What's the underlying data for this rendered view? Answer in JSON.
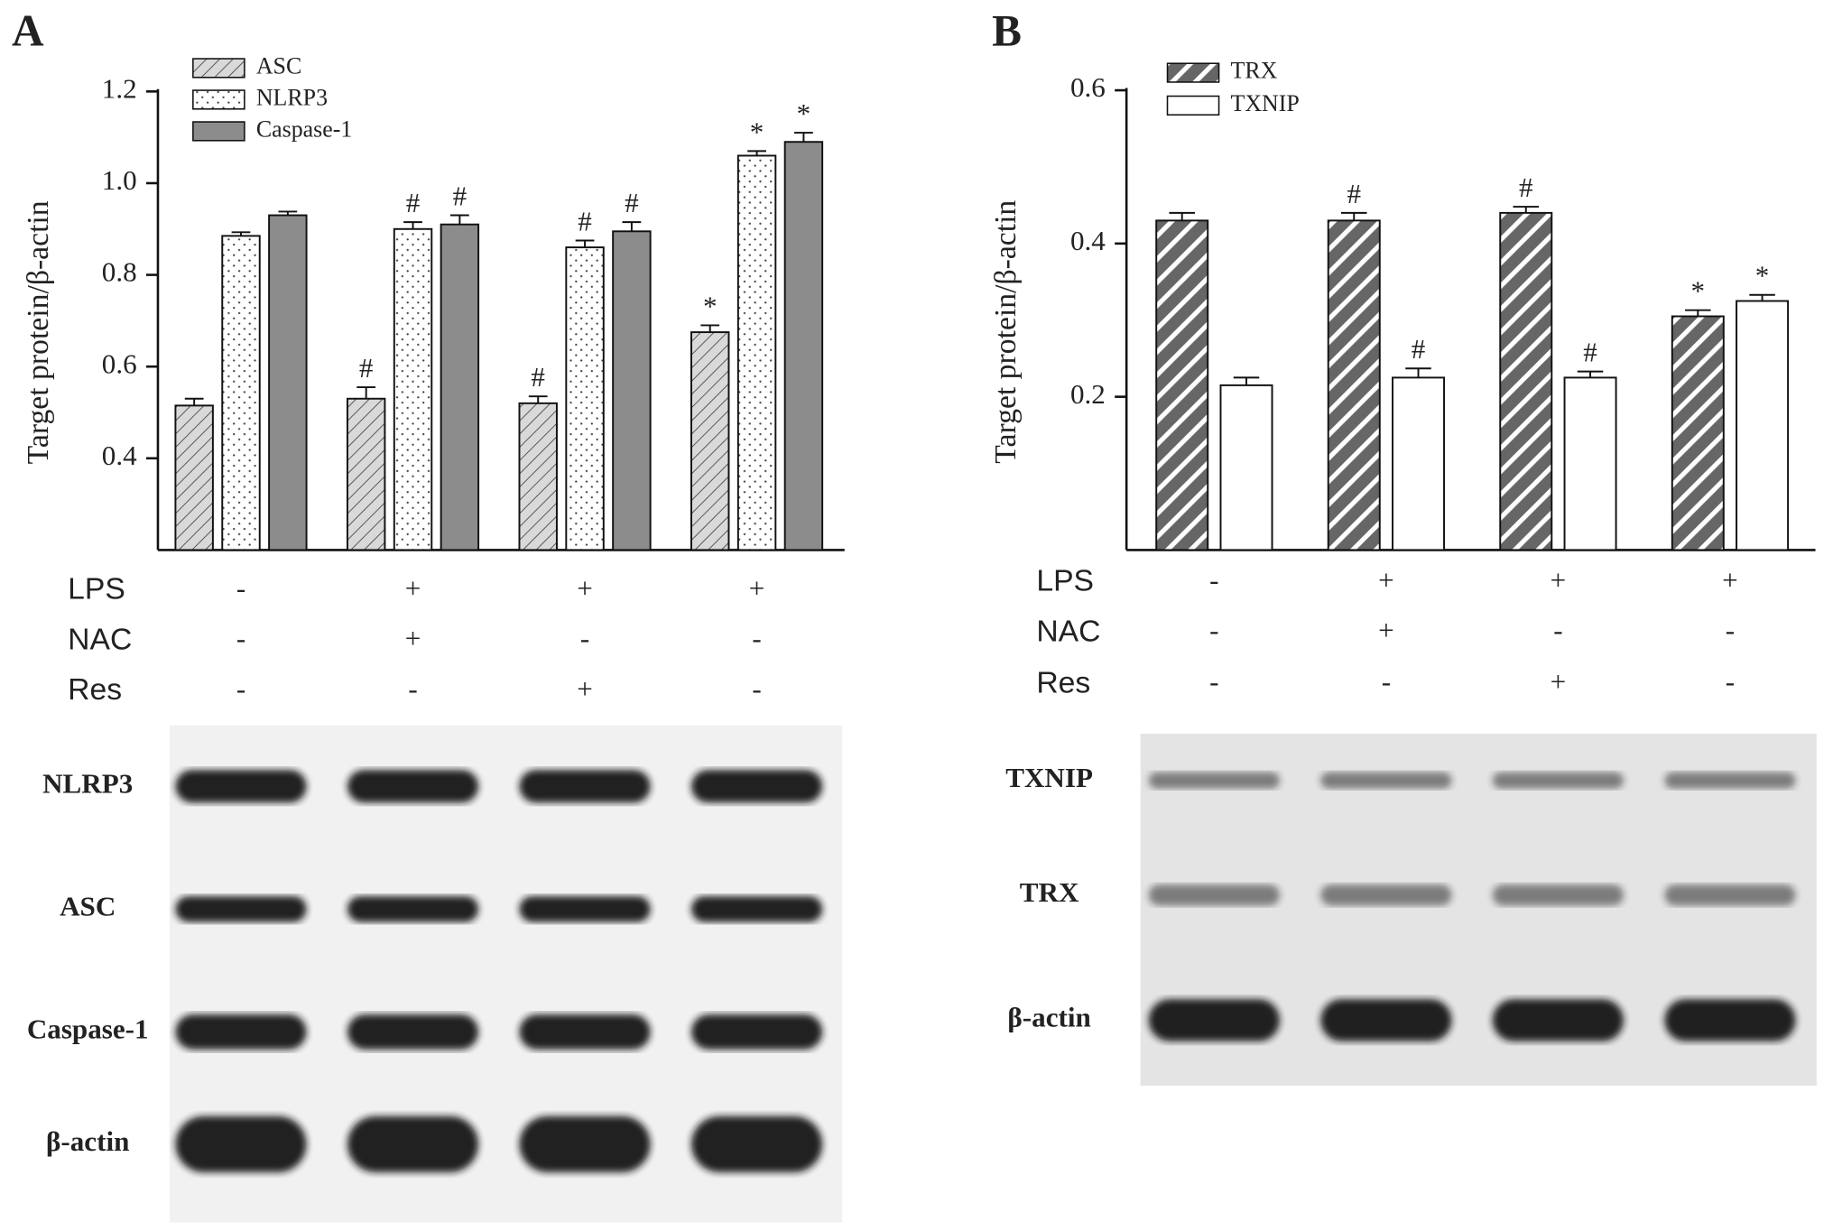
{
  "chart_data": [
    {
      "type": "bar",
      "panel": "A",
      "ylabel": "Target protein/β-actin",
      "categories": [
        null,
        null,
        null,
        null
      ],
      "series": [
        {
          "name": "ASC",
          "color": "#d9d9d9",
          "pattern": "hatch",
          "values": [
            0.515,
            0.53,
            0.52,
            0.675
          ],
          "errors": [
            0.015,
            0.025,
            0.015,
            0.015
          ],
          "markers": [
            null,
            "#",
            "#",
            "*"
          ]
        },
        {
          "name": "NLRP3",
          "color": "#ffffff",
          "pattern": "dots",
          "values": [
            0.885,
            0.9,
            0.86,
            1.06
          ],
          "errors": [
            0.008,
            0.015,
            0.015,
            0.01
          ],
          "markers": [
            null,
            "#",
            "#",
            "*"
          ]
        },
        {
          "name": "Caspase-1",
          "color": "#8c8c8c",
          "pattern": "solid",
          "values": [
            0.93,
            0.91,
            0.895,
            1.09
          ],
          "errors": [
            0.008,
            0.02,
            0.02,
            0.02
          ],
          "markers": [
            null,
            "#",
            "#",
            "*"
          ]
        }
      ],
      "ylim": [
        0.2,
        1.2
      ],
      "yticks": [
        0.4,
        0.6,
        0.8,
        {
          "value": 1,
          "label": "1.0"
        },
        1.2
      ],
      "treatments": [
        {
          "name": "LPS",
          "signs": [
            "-",
            "+",
            "+",
            "+"
          ]
        },
        {
          "name": "NAC",
          "signs": [
            "-",
            "+",
            "-",
            "-"
          ]
        },
        {
          "name": "Res",
          "signs": [
            "-",
            "-",
            "+",
            "-"
          ]
        }
      ],
      "blots": [
        "NLRP3",
        "ASC",
        "Caspase-1",
        "β-actin"
      ]
    },
    {
      "type": "bar",
      "panel": "B",
      "ylabel": "Target protein/β-actin",
      "categories": [
        null,
        null,
        null,
        null
      ],
      "series": [
        {
          "name": "TRX",
          "color": "#666666",
          "pattern": "stripes",
          "values": [
            0.43,
            0.43,
            0.44,
            0.305
          ],
          "errors": [
            0.01,
            0.01,
            0.008,
            0.008
          ],
          "markers": [
            null,
            "#",
            "#",
            "*"
          ]
        },
        {
          "name": "TXNIP",
          "color": "#ffffff",
          "pattern": "solid",
          "values": [
            0.215,
            0.225,
            0.225,
            0.325
          ],
          "errors": [
            0.01,
            0.012,
            0.008,
            0.008
          ],
          "markers": [
            null,
            "#",
            "#",
            "*"
          ]
        }
      ],
      "ylim": [
        0,
        0.6
      ],
      "yticks": [
        0.2,
        0.4,
        0.6
      ],
      "treatments": [
        {
          "name": "LPS",
          "signs": [
            "-",
            "+",
            "+",
            "+"
          ]
        },
        {
          "name": "NAC",
          "signs": [
            "-",
            "+",
            "-",
            "-"
          ]
        },
        {
          "name": "Res",
          "signs": [
            "-",
            "-",
            "+",
            "-"
          ]
        }
      ],
      "blots": [
        "TXNIP",
        "TRX",
        "β-actin"
      ]
    }
  ]
}
